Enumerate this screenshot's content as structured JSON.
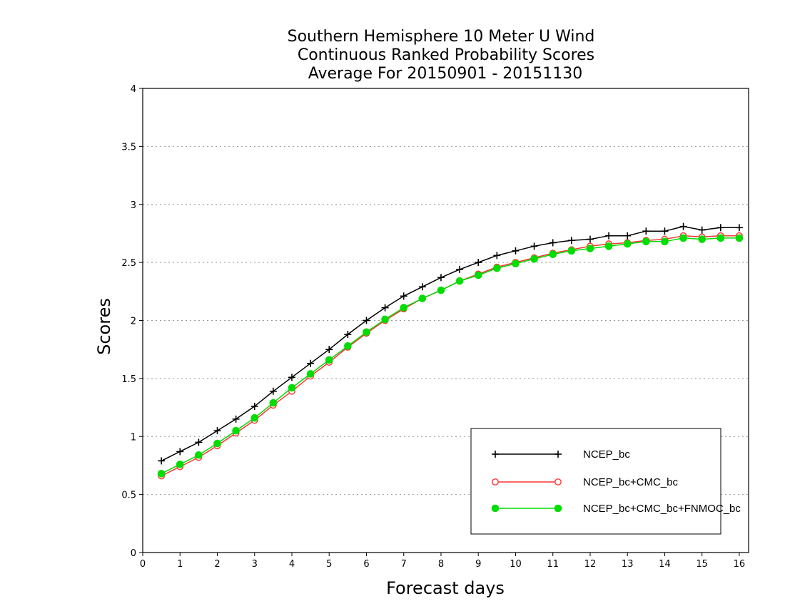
{
  "chart_data": {
    "type": "line",
    "title": [
      "Southern Hemisphere 10 Meter U Wind",
      "Continuous Ranked Probability Scores",
      "Average For 20150901 - 20151130"
    ],
    "xlabel": "Forecast days",
    "ylabel": "Scores",
    "xlim": [
      0,
      16.25
    ],
    "ylim": [
      0,
      4
    ],
    "xticks": [
      "0",
      "1",
      "2",
      "3",
      "4",
      "5",
      "6",
      "7",
      "8",
      "9",
      "10",
      "11",
      "12",
      "13",
      "14",
      "15",
      "16"
    ],
    "yticks": [
      "0",
      "0.5",
      "1",
      "1.5",
      "2",
      "2.5",
      "3",
      "3.5",
      "4"
    ],
    "grid": "horizontal dotted",
    "legend_position": "bottom-right",
    "x": [
      0.5,
      1,
      1.5,
      2,
      2.5,
      3,
      3.5,
      4,
      4.5,
      5,
      5.5,
      6,
      6.5,
      7,
      7.5,
      8,
      8.5,
      9,
      9.5,
      10,
      10.5,
      11,
      11.5,
      12,
      12.5,
      13,
      13.5,
      14,
      14.5,
      15,
      15.5,
      16
    ],
    "series": [
      {
        "name": "NCEP_bc",
        "color": "#000000",
        "marker": "plus",
        "values": [
          0.79,
          0.87,
          0.95,
          1.05,
          1.15,
          1.26,
          1.39,
          1.51,
          1.63,
          1.75,
          1.88,
          2.0,
          2.11,
          2.21,
          2.29,
          2.37,
          2.44,
          2.5,
          2.56,
          2.6,
          2.64,
          2.67,
          2.69,
          2.7,
          2.73,
          2.73,
          2.77,
          2.77,
          2.81,
          2.78,
          2.8,
          2.8
        ]
      },
      {
        "name": "NCEP_bc+CMC_bc",
        "color": "#ff3333",
        "marker": "open-circle",
        "values": [
          0.66,
          0.74,
          0.82,
          0.92,
          1.03,
          1.14,
          1.27,
          1.39,
          1.52,
          1.64,
          1.77,
          1.89,
          2.0,
          2.1,
          2.19,
          2.26,
          2.34,
          2.4,
          2.46,
          2.5,
          2.54,
          2.58,
          2.61,
          2.64,
          2.66,
          2.67,
          2.69,
          2.7,
          2.73,
          2.72,
          2.73,
          2.73
        ]
      },
      {
        "name": "NCEP_bc+CMC_bc+FNMOC_bc",
        "color": "#00dd00",
        "marker": "filled-circle",
        "values": [
          0.68,
          0.76,
          0.84,
          0.94,
          1.05,
          1.16,
          1.29,
          1.42,
          1.54,
          1.66,
          1.78,
          1.9,
          2.01,
          2.11,
          2.19,
          2.26,
          2.34,
          2.39,
          2.45,
          2.49,
          2.53,
          2.57,
          2.6,
          2.62,
          2.64,
          2.66,
          2.68,
          2.68,
          2.71,
          2.7,
          2.71,
          2.71
        ]
      }
    ]
  }
}
